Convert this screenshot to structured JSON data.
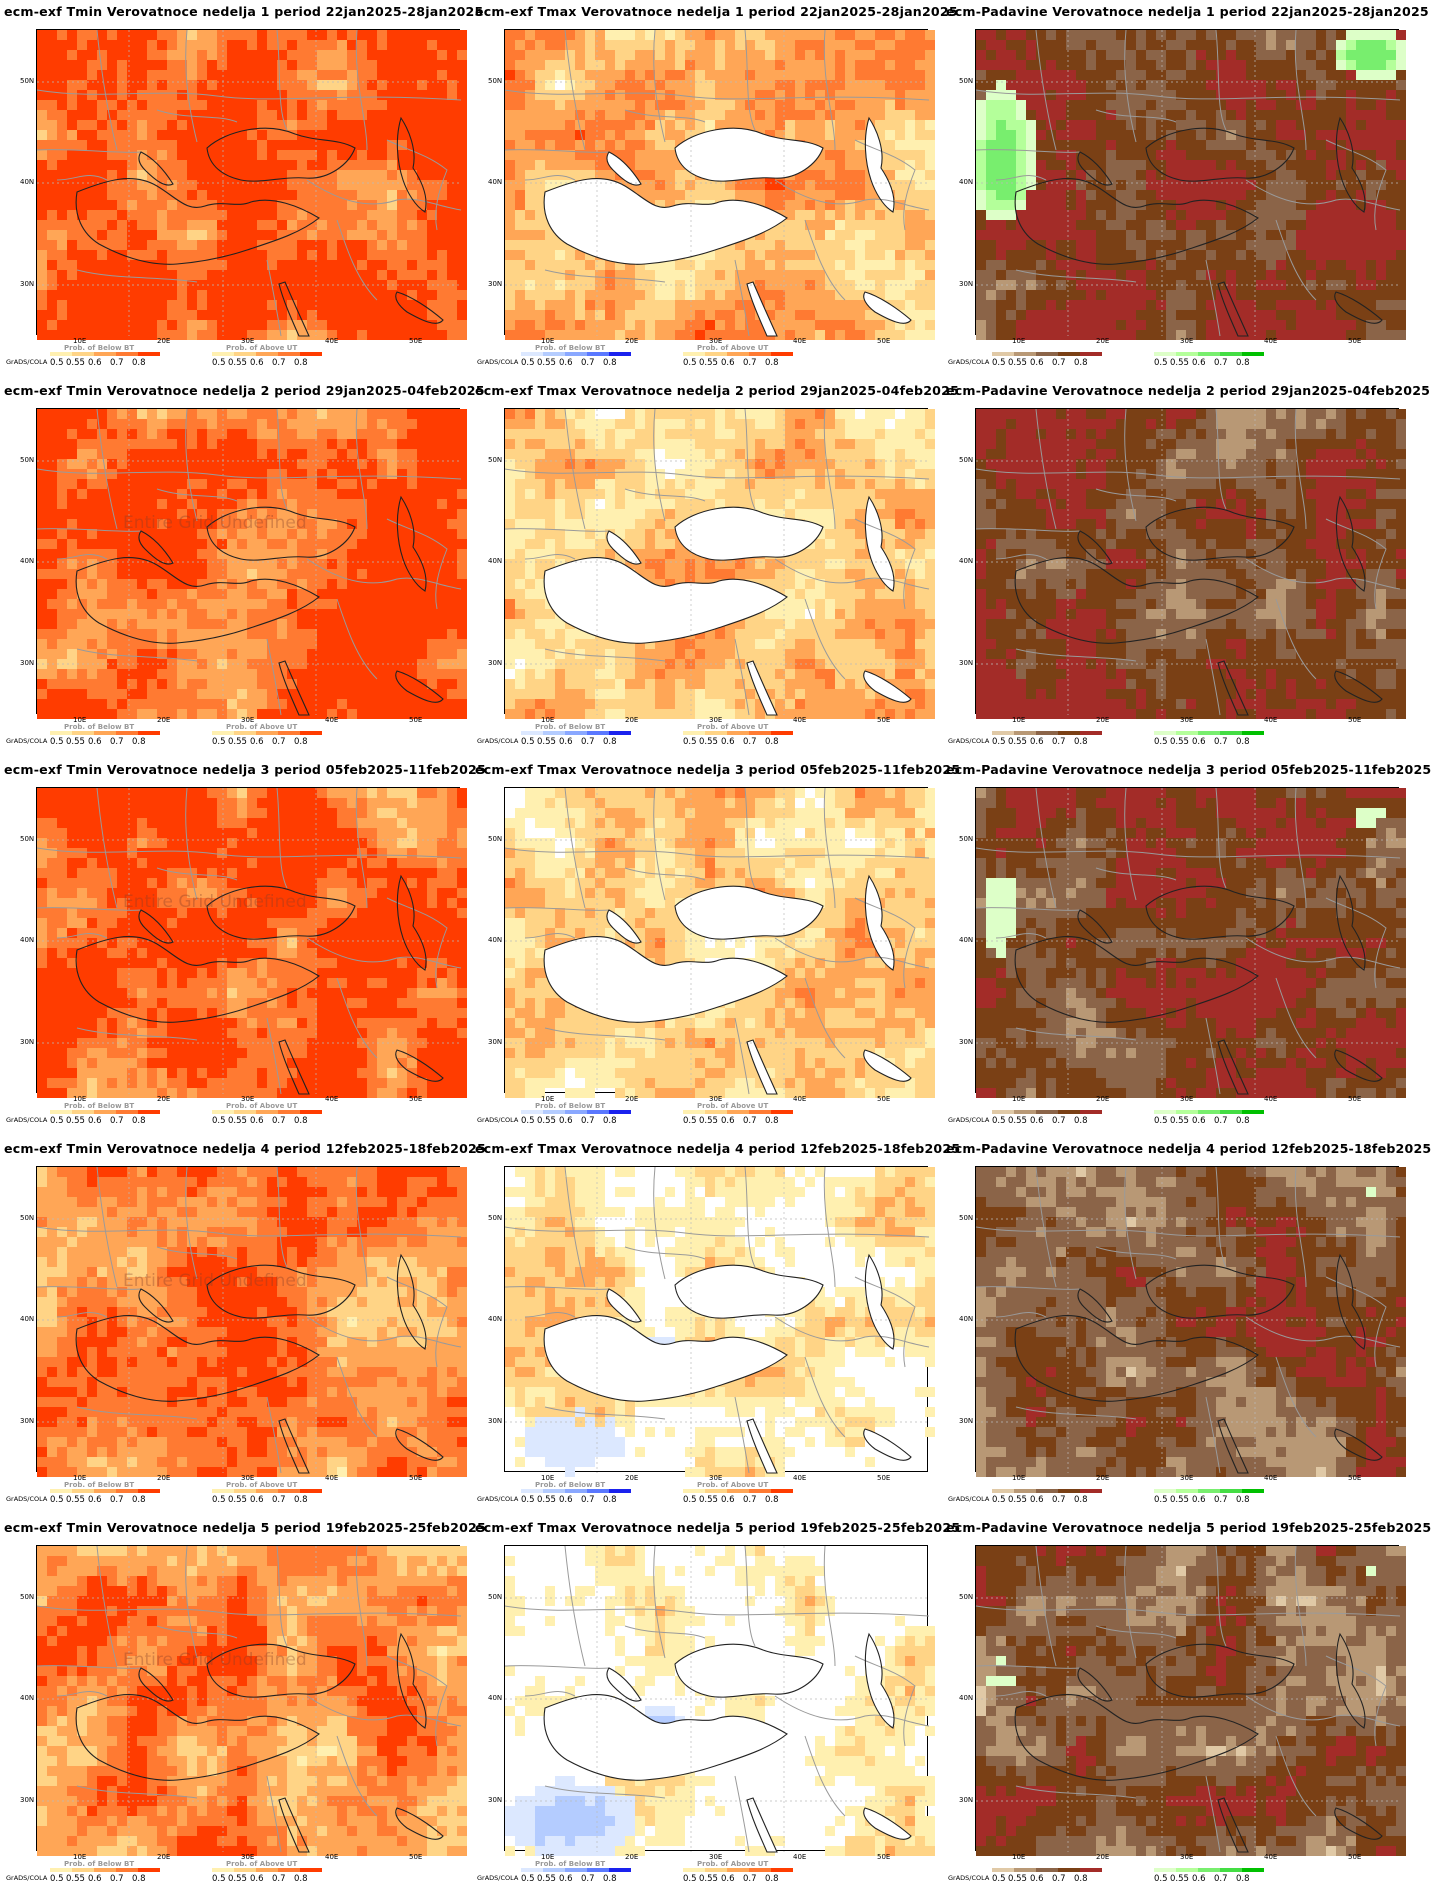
{
  "labels": {
    "grads": "GrADS/COLA",
    "undefined": "Entire Grid Undefined",
    "lat_ticks": [
      "50N",
      "40N",
      "30N"
    ],
    "lon_ticks": [
      "10E",
      "20E",
      "30E",
      "40E",
      "50E"
    ],
    "legend_ticks": [
      "0.5",
      "0.55",
      "0.6",
      "0.7",
      "0.8"
    ],
    "legend_below": "Prob. of Below BT",
    "legend_above": "Prob. of Above UT"
  },
  "colors": {
    "warm_scale": [
      "#fff0b0",
      "#ffd486",
      "#ffa656",
      "#ff7a32",
      "#ff3c00"
    ],
    "cold_scale": [
      "#dce8ff",
      "#b4ccff",
      "#8aa8ff",
      "#5a78ff",
      "#1a22ee"
    ],
    "dry_scale": [
      "#e0c9a6",
      "#b89875",
      "#8b6448",
      "#7a4015",
      "#a32c28"
    ],
    "wet_scale": [
      "#ddffc8",
      "#b4ff9a",
      "#78ee6e",
      "#44dd44",
      "#00c000"
    ],
    "coast": "#222222",
    "border": "#9a9a9a"
  },
  "rows": [
    {
      "panels": [
        {
          "title": "ecm-exf Tmin Verovatnoce nedelja 1 period 22jan2025-28jan2025",
          "kind": "tmin",
          "undefined": false,
          "fields": [
            {
              "scale": "warm",
              "level": 0.93
            }
          ]
        },
        {
          "title": "ecm-exf Tmax Verovatnoce nedelja 1 period 22jan2025-28jan2025",
          "kind": "tmax",
          "undefined": false,
          "fields": [
            {
              "scale": "warm",
              "level": 0.6
            }
          ]
        },
        {
          "title": "ecm-Padavine Verovatnoce nedelja 1 period 22jan2025-28jan2025",
          "kind": "padavine",
          "undefined": false,
          "fields": [
            {
              "scale": "dry",
              "level": 0.9
            },
            {
              "scale": "wet",
              "level": 0.4
            }
          ]
        }
      ]
    },
    {
      "panels": [
        {
          "title": "ecm-exf Tmin Verovatnoce nedelja 2 period 29jan2025-04feb2025",
          "kind": "tmin",
          "undefined": true,
          "fields": [
            {
              "scale": "warm",
              "level": 0.9
            }
          ]
        },
        {
          "title": "ecm-exf Tmax Verovatnoce nedelja 2 period 29jan2025-04feb2025",
          "kind": "tmax",
          "undefined": false,
          "fields": [
            {
              "scale": "warm",
              "level": 0.5
            }
          ]
        },
        {
          "title": "ecm-Padavine Verovatnoce nedelja 2 period 29jan2025-04feb2025",
          "kind": "padavine",
          "undefined": false,
          "fields": [
            {
              "scale": "dry",
              "level": 0.8
            },
            {
              "scale": "wet",
              "level": 0.1
            }
          ]
        }
      ]
    },
    {
      "panels": [
        {
          "title": "ecm-exf Tmin Verovatnoce nedelja 3 period 05feb2025-11feb2025",
          "kind": "tmin",
          "undefined": true,
          "fields": [
            {
              "scale": "warm",
              "level": 0.92
            }
          ]
        },
        {
          "title": "ecm-exf Tmax Verovatnoce nedelja 3 period 05feb2025-11feb2025",
          "kind": "tmax",
          "undefined": false,
          "fields": [
            {
              "scale": "warm",
              "level": 0.4
            }
          ]
        },
        {
          "title": "ecm-Padavine Verovatnoce nedelja 3 period 05feb2025-11feb2025",
          "kind": "padavine",
          "undefined": false,
          "fields": [
            {
              "scale": "dry",
              "level": 0.85
            },
            {
              "scale": "wet",
              "level": 0.2
            }
          ]
        }
      ]
    },
    {
      "panels": [
        {
          "title": "ecm-exf Tmin Verovatnoce nedelja 4 period 12feb2025-18feb2025",
          "kind": "tmin",
          "undefined": true,
          "fields": [
            {
              "scale": "warm",
              "level": 0.78
            }
          ]
        },
        {
          "title": "ecm-exf Tmax Verovatnoce nedelja 4 period 12feb2025-18feb2025",
          "kind": "tmax",
          "undefined": false,
          "fields": [
            {
              "scale": "warm",
              "level": 0.25
            },
            {
              "scale": "cold",
              "level": 0.12
            }
          ]
        },
        {
          "title": "ecm-Padavine Verovatnoce nedelja 4 period 12feb2025-18feb2025",
          "kind": "padavine",
          "undefined": false,
          "fields": [
            {
              "scale": "dry",
              "level": 0.75
            },
            {
              "scale": "wet",
              "level": 0.15
            }
          ]
        }
      ]
    },
    {
      "panels": [
        {
          "title": "ecm-exf Tmin Verovatnoce nedelja 5 period 19feb2025-25feb2025",
          "kind": "tmin",
          "undefined": true,
          "fields": [
            {
              "scale": "warm",
              "level": 0.75
            }
          ]
        },
        {
          "title": "ecm-exf Tmax Verovatnoce nedelja 5 period 19feb2025-25feb2025",
          "kind": "tmax",
          "undefined": false,
          "fields": [
            {
              "scale": "warm",
              "level": 0.15
            },
            {
              "scale": "cold",
              "level": 0.3
            }
          ]
        },
        {
          "title": "ecm-Padavine Verovatnoce nedelja 5 period 19feb2025-25feb2025",
          "kind": "padavine",
          "undefined": false,
          "fields": [
            {
              "scale": "dry",
              "level": 0.72
            },
            {
              "scale": "wet",
              "level": 0.15
            }
          ]
        }
      ]
    }
  ]
}
